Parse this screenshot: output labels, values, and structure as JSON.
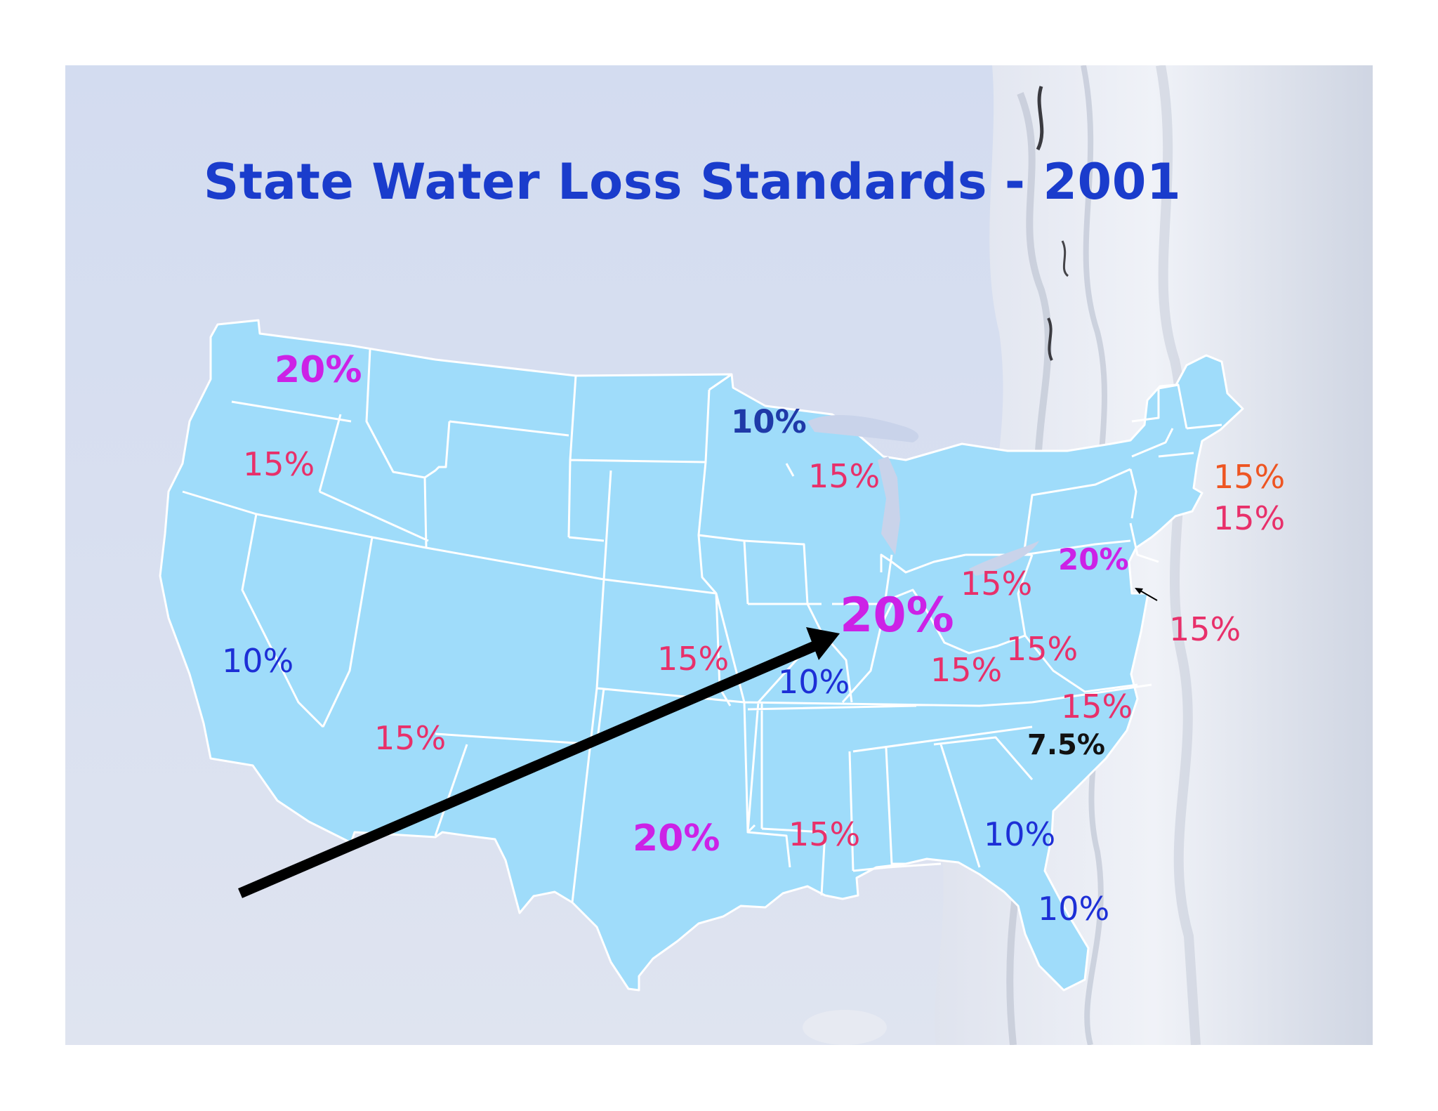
{
  "title": "State Water Loss Standards - 2001",
  "colors": {
    "land": "#9fdcfa",
    "border": "#ffffff",
    "title": "#1a3ccc",
    "magenta": "#cc22e6",
    "pink": "#e8306a",
    "blue": "#1d2fd6",
    "orange": "#ee5522",
    "arrow": "#000000"
  },
  "map_labels": {
    "washington": "20%",
    "oregon": "15%",
    "california": "10%",
    "arizona": "15%",
    "texas": "20%",
    "kansas": "15%",
    "minnesota": "10%",
    "wisconsin": "15%",
    "illinois": "20%",
    "missouri": "10%",
    "louisiana": "15%",
    "ohio": "15%",
    "kentucky": "15%",
    "virginia": "15%",
    "pennsylvania": "20%",
    "north_carolina": "15%",
    "south_carolina": "7.5%",
    "georgia": "10%",
    "florida": "10%",
    "massachusetts": "15%",
    "connecticut": "15%",
    "delaware": "15%"
  }
}
